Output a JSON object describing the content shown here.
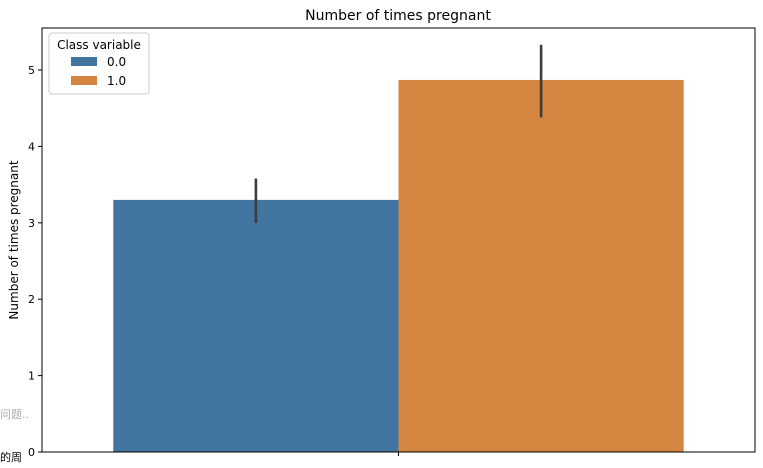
{
  "side_text": [
    "问题..",
    "的周"
  ],
  "chart_data": {
    "type": "bar",
    "title": "Number of times pregnant",
    "xlabel": "",
    "ylabel": "Number of times pregnant",
    "ylim": [
      0,
      5.55
    ],
    "yticks": [
      0,
      1,
      2,
      3,
      4,
      5
    ],
    "grid": false,
    "categories": [
      ""
    ],
    "legend": {
      "title": "Class variable",
      "placement": "top-left"
    },
    "series": [
      {
        "name": "0.0",
        "color": "#4274a0",
        "values": [
          3.3
        ],
        "error": [
          [
            3.0,
            3.58
          ]
        ]
      },
      {
        "name": "1.0",
        "color": "#d48640",
        "values": [
          4.87
        ],
        "error": [
          [
            4.38,
            5.33
          ]
        ]
      }
    ]
  }
}
